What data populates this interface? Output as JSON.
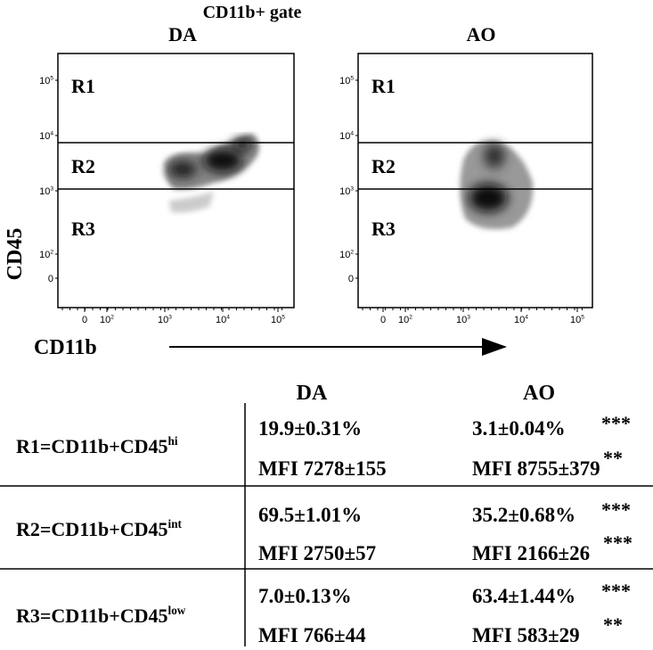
{
  "figure": {
    "title": "CD11b+ gate",
    "panels": [
      {
        "title": "DA",
        "regions": [
          "R1",
          "R2",
          "R3"
        ]
      },
      {
        "title": "AO",
        "regions": [
          "R1",
          "R2",
          "R3"
        ]
      }
    ],
    "y_axis_label": "CD45",
    "x_axis_label": "CD11b",
    "y_ticks": [
      {
        "base": "10",
        "exp": "5"
      },
      {
        "base": "10",
        "exp": "4"
      },
      {
        "base": "10",
        "exp": "3"
      },
      {
        "base": "10",
        "exp": "2"
      },
      {
        "base": "0"
      }
    ],
    "x_ticks": [
      {
        "base": "0"
      },
      {
        "base": "10",
        "exp": "2"
      },
      {
        "base": "10",
        "exp": "3"
      },
      {
        "base": "10",
        "exp": "4"
      },
      {
        "base": "10",
        "exp": "5"
      }
    ]
  },
  "table": {
    "columns": [
      "DA",
      "AO"
    ],
    "rows": [
      {
        "label": {
          "text": "R1=CD11b+CD45",
          "sup": "hi"
        },
        "cells": [
          {
            "pct": "19.9±0.31%",
            "mfi": "MFI 7278±155"
          },
          {
            "pct": "3.1±0.04%",
            "pct_sig": "***",
            "mfi": "MFI 8755±379",
            "mfi_sig": "**"
          }
        ]
      },
      {
        "label": {
          "text": "R2=CD11b+CD45",
          "sup": "int"
        },
        "cells": [
          {
            "pct": "69.5±1.01%",
            "mfi": "MFI 2750±57"
          },
          {
            "pct": "35.2±0.68%",
            "pct_sig": "***",
            "mfi": "MFI 2166±26",
            "mfi_sig": "***"
          }
        ]
      },
      {
        "label": {
          "text": "R3=CD11b+CD45",
          "sup": "low"
        },
        "cells": [
          {
            "pct": "7.0±0.13%",
            "mfi": "MFI 766±44"
          },
          {
            "pct": "63.4±1.44%",
            "pct_sig": "***",
            "mfi": "MFI 583±29",
            "mfi_sig": "**"
          }
        ]
      }
    ]
  }
}
